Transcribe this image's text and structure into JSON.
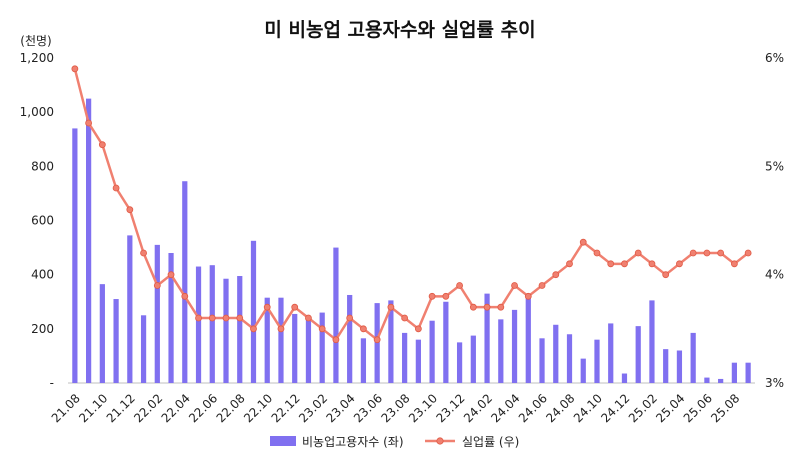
{
  "chart_data": {
    "type": "bar+line",
    "title": "미 비농업 고용자수와 실업률 추이",
    "left_axis": {
      "unit_label": "(천명)",
      "range": [
        0,
        1200
      ],
      "ticks": [
        "-",
        "200",
        "400",
        "600",
        "800",
        "1,000",
        "1,200"
      ]
    },
    "right_axis": {
      "range": [
        3,
        6
      ],
      "ticks": [
        "3%",
        "4%",
        "5%",
        "6%"
      ]
    },
    "categories": [
      "21.08",
      "21.09",
      "21.10",
      "21.11",
      "21.12",
      "22.01",
      "22.02",
      "22.03",
      "22.04",
      "22.05",
      "22.06",
      "22.07",
      "22.08",
      "22.09",
      "22.10",
      "22.11",
      "22.12",
      "23.01",
      "23.02",
      "23.03",
      "23.04",
      "23.05",
      "23.06",
      "23.07",
      "23.08",
      "23.09",
      "23.10",
      "23.11",
      "23.12",
      "24.01",
      "24.02",
      "24.03",
      "24.04",
      "24.05",
      "24.06",
      "24.07",
      "24.08",
      "24.09",
      "24.10",
      "24.11",
      "24.12",
      "25.01",
      "25.02",
      "25.03",
      "25.04",
      "25.05",
      "25.06",
      "25.07",
      "25.08",
      "25.09"
    ],
    "x_tick_labels": [
      "21.08",
      "21.10",
      "21.12",
      "22.02",
      "22.04",
      "22.06",
      "22.08",
      "22.10",
      "22.12",
      "23.02",
      "23.04",
      "23.06",
      "23.08",
      "23.10",
      "23.12",
      "24.02",
      "24.04",
      "24.06",
      "24.08",
      "24.10",
      "24.12",
      "25.02",
      "25.04",
      "25.06",
      "25.08"
    ],
    "series": [
      {
        "name": "비농업고용자수 (좌)",
        "type": "bar",
        "axis": "left",
        "color": "#8070f0",
        "values": [
          940,
          1050,
          365,
          310,
          545,
          250,
          510,
          480,
          745,
          430,
          435,
          385,
          395,
          525,
          315,
          315,
          255,
          245,
          260,
          500,
          325,
          165,
          295,
          305,
          185,
          160,
          230,
          300,
          150,
          175,
          330,
          235,
          270,
          325,
          165,
          215,
          180,
          90,
          160,
          220,
          35,
          210,
          305,
          125,
          120,
          185,
          20,
          15,
          75,
          75
        ]
      },
      {
        "name": "실업률 (우)",
        "type": "line",
        "axis": "right",
        "color": "#f08070",
        "values": [
          5.9,
          5.4,
          5.2,
          4.8,
          4.6,
          4.2,
          3.9,
          4.0,
          3.8,
          3.6,
          3.6,
          3.6,
          3.6,
          3.5,
          3.7,
          3.5,
          3.7,
          3.6,
          3.5,
          3.4,
          3.6,
          3.5,
          3.4,
          3.7,
          3.6,
          3.5,
          3.8,
          3.8,
          3.9,
          3.7,
          3.7,
          3.7,
          3.9,
          3.8,
          3.9,
          4.0,
          4.1,
          4.3,
          4.2,
          4.1,
          4.1,
          4.2,
          4.1,
          4.0,
          4.1,
          4.2,
          4.2,
          4.2,
          4.1,
          4.2
        ]
      }
    ],
    "legend": {
      "placement": "bottom"
    },
    "grid": false
  }
}
